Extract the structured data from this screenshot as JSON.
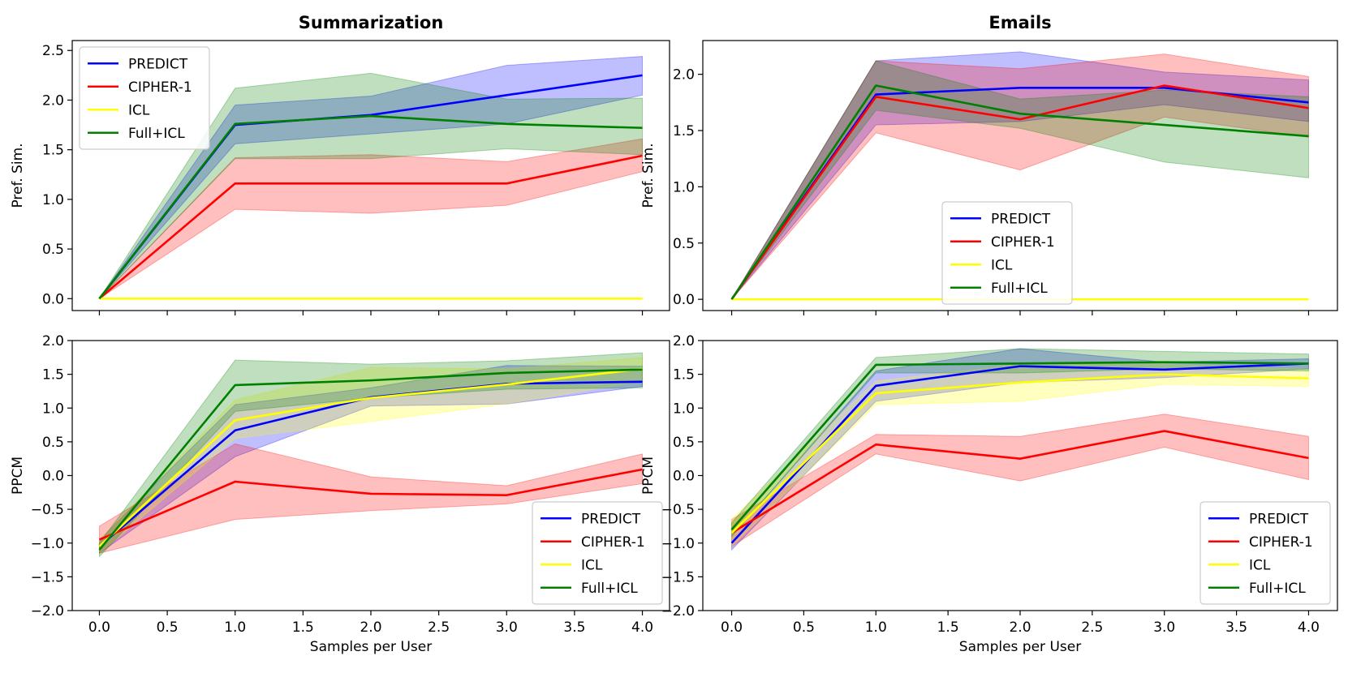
{
  "chart_data": [
    {
      "type": "line",
      "id": "sum-pref",
      "title": "Summarization",
      "xlabel": "",
      "ylabel": "Pref. Sim.",
      "xlim": [
        -0.2,
        4.2
      ],
      "ylim": [
        -0.12,
        2.6
      ],
      "xticks": [
        0.0,
        0.5,
        1.0,
        1.5,
        2.0,
        2.5,
        3.0,
        3.5,
        4.0
      ],
      "xtick_labels": [],
      "yticks": [
        0.0,
        0.5,
        1.0,
        1.5,
        2.0,
        2.5
      ],
      "ytick_labels": [
        "0.0",
        "0.5",
        "1.0",
        "1.5",
        "2.0",
        "2.5"
      ],
      "legend": "upper-left",
      "x": [
        0,
        1,
        2,
        3,
        4
      ],
      "series": [
        {
          "name": "PREDICT",
          "color": "#0000ff",
          "values": [
            0.0,
            1.75,
            1.85,
            2.05,
            2.25
          ],
          "lower": [
            0.0,
            1.56,
            1.66,
            1.76,
            2.05
          ],
          "upper": [
            0.0,
            1.95,
            2.04,
            2.35,
            2.44
          ]
        },
        {
          "name": "CIPHER-1",
          "color": "#ff0000",
          "values": [
            0.0,
            1.16,
            1.16,
            1.16,
            1.44
          ],
          "lower": [
            0.0,
            0.9,
            0.86,
            0.94,
            1.28
          ],
          "upper": [
            0.0,
            1.42,
            1.45,
            1.38,
            1.61
          ]
        },
        {
          "name": "ICL",
          "color": "#ffff00",
          "values": [
            0.0,
            0.0,
            0.0,
            0.0,
            0.0
          ],
          "lower": [
            0.0,
            0.0,
            0.0,
            0.0,
            0.0
          ],
          "upper": [
            0.0,
            0.0,
            0.0,
            0.0,
            0.0
          ]
        },
        {
          "name": "Full+ICL",
          "color": "#008000",
          "values": [
            0.0,
            1.76,
            1.84,
            1.76,
            1.72
          ],
          "lower": [
            0.0,
            1.41,
            1.41,
            1.51,
            1.45
          ],
          "upper": [
            0.0,
            2.12,
            2.27,
            2.01,
            2.02
          ]
        }
      ]
    },
    {
      "type": "line",
      "id": "email-pref",
      "title": "Emails",
      "xlabel": "",
      "ylabel": "Pref. Sim.",
      "xlim": [
        -0.2,
        4.2
      ],
      "ylim": [
        -0.1,
        2.3
      ],
      "xticks": [
        0.0,
        0.5,
        1.0,
        1.5,
        2.0,
        2.5,
        3.0,
        3.5,
        4.0
      ],
      "xtick_labels": [],
      "yticks": [
        0.0,
        0.5,
        1.0,
        1.5,
        2.0
      ],
      "ytick_labels": [
        "0.0",
        "0.5",
        "1.0",
        "1.5",
        "2.0"
      ],
      "legend": "lower-center",
      "x": [
        0,
        1,
        2,
        3,
        4
      ],
      "series": [
        {
          "name": "PREDICT",
          "color": "#0000ff",
          "values": [
            0.0,
            1.82,
            1.88,
            1.88,
            1.75
          ],
          "lower": [
            0.0,
            1.55,
            1.58,
            1.73,
            1.58
          ],
          "upper": [
            0.0,
            2.12,
            2.2,
            2.02,
            1.95
          ]
        },
        {
          "name": "CIPHER-1",
          "color": "#ff0000",
          "values": [
            0.0,
            1.8,
            1.6,
            1.9,
            1.7
          ],
          "lower": [
            0.0,
            1.48,
            1.15,
            1.62,
            1.44
          ],
          "upper": [
            0.0,
            2.12,
            2.05,
            2.18,
            1.98
          ]
        },
        {
          "name": "ICL",
          "color": "#ffff00",
          "values": [
            0.0,
            0.0,
            0.0,
            0.0,
            0.0
          ],
          "lower": [
            0.0,
            0.0,
            0.0,
            0.0,
            0.0
          ],
          "upper": [
            0.0,
            0.0,
            0.0,
            0.0,
            0.0
          ]
        },
        {
          "name": "Full+ICL",
          "color": "#008000",
          "values": [
            0.0,
            1.9,
            1.65,
            1.55,
            1.45
          ],
          "lower": [
            0.0,
            1.68,
            1.52,
            1.22,
            1.08
          ],
          "upper": [
            0.0,
            2.12,
            1.78,
            1.86,
            1.8
          ]
        }
      ]
    },
    {
      "type": "line",
      "id": "sum-ppcm",
      "title": "",
      "xlabel": "Samples per User",
      "ylabel": "PPCM",
      "xlim": [
        -0.2,
        4.2
      ],
      "ylim": [
        -2.0,
        2.0
      ],
      "xticks": [
        0.0,
        0.5,
        1.0,
        1.5,
        2.0,
        2.5,
        3.0,
        3.5,
        4.0
      ],
      "xtick_labels": [
        "0.0",
        "0.5",
        "1.0",
        "1.5",
        "2.0",
        "2.5",
        "3.0",
        "3.5",
        "4.0"
      ],
      "yticks": [
        -2.0,
        -1.5,
        -1.0,
        -0.5,
        0.0,
        0.5,
        1.0,
        1.5,
        2.0
      ],
      "ytick_labels": [
        "−2.0",
        "−1.5",
        "−1.0",
        "−0.5",
        "0.0",
        "0.5",
        "1.0",
        "1.5",
        "2.0"
      ],
      "legend": "lower-right",
      "x": [
        0,
        1,
        2,
        3,
        4
      ],
      "series": [
        {
          "name": "PREDICT",
          "color": "#0000ff",
          "values": [
            -1.05,
            0.67,
            1.16,
            1.36,
            1.39
          ],
          "lower": [
            -1.15,
            0.28,
            1.03,
            1.06,
            1.32
          ],
          "upper": [
            -0.95,
            1.05,
            1.3,
            1.63,
            1.62
          ]
        },
        {
          "name": "CIPHER-1",
          "color": "#ff0000",
          "values": [
            -0.95,
            -0.09,
            -0.27,
            -0.29,
            0.09
          ],
          "lower": [
            -1.15,
            -0.65,
            -0.52,
            -0.42,
            -0.12
          ],
          "upper": [
            -0.75,
            0.47,
            -0.02,
            -0.15,
            0.32
          ]
        },
        {
          "name": "ICL",
          "color": "#ffff00",
          "values": [
            -1.05,
            0.82,
            1.15,
            1.35,
            1.58
          ],
          "lower": [
            -1.15,
            0.55,
            0.8,
            1.06,
            1.4
          ],
          "upper": [
            -0.95,
            1.12,
            1.6,
            1.58,
            1.75
          ]
        },
        {
          "name": "Full+ICL",
          "color": "#008000",
          "values": [
            -1.1,
            1.34,
            1.41,
            1.52,
            1.57
          ],
          "lower": [
            -1.2,
            0.95,
            1.15,
            1.28,
            1.3
          ],
          "upper": [
            -1.0,
            1.71,
            1.65,
            1.7,
            1.82
          ]
        }
      ]
    },
    {
      "type": "line",
      "id": "email-ppcm",
      "title": "",
      "xlabel": "Samples per User",
      "ylabel": "PPCM",
      "xlim": [
        -0.2,
        4.2
      ],
      "ylim": [
        -2.0,
        2.0
      ],
      "xticks": [
        0.0,
        0.5,
        1.0,
        1.5,
        2.0,
        2.5,
        3.0,
        3.5,
        4.0
      ],
      "xtick_labels": [
        "0.0",
        "0.5",
        "1.0",
        "1.5",
        "2.0",
        "2.5",
        "3.0",
        "3.5",
        "4.0"
      ],
      "yticks": [
        -2.0,
        -1.5,
        -1.0,
        -0.5,
        0.0,
        0.5,
        1.0,
        1.5,
        2.0
      ],
      "ytick_labels": [
        "−2.0",
        "−1.5",
        "−1.0",
        "−0.5",
        "0.0",
        "0.5",
        "1.0",
        "1.5",
        "2.0"
      ],
      "legend": "lower-right",
      "x": [
        0,
        1,
        2,
        3,
        4
      ],
      "series": [
        {
          "name": "PREDICT",
          "color": "#0000ff",
          "values": [
            -1.0,
            1.33,
            1.62,
            1.57,
            1.66
          ],
          "lower": [
            -1.1,
            1.1,
            1.38,
            1.45,
            1.58
          ],
          "upper": [
            -0.9,
            1.55,
            1.88,
            1.68,
            1.73
          ]
        },
        {
          "name": "CIPHER-1",
          "color": "#ff0000",
          "values": [
            -0.85,
            0.46,
            0.25,
            0.66,
            0.26
          ],
          "lower": [
            -1.05,
            0.32,
            -0.08,
            0.42,
            -0.06
          ],
          "upper": [
            -0.65,
            0.61,
            0.58,
            0.91,
            0.58
          ]
        },
        {
          "name": "ICL",
          "color": "#ffff00",
          "values": [
            -0.85,
            1.22,
            1.38,
            1.5,
            1.44
          ],
          "lower": [
            -1.05,
            1.05,
            1.1,
            1.35,
            1.32
          ],
          "upper": [
            -0.65,
            1.4,
            1.65,
            1.65,
            1.57
          ]
        },
        {
          "name": "Full+ICL",
          "color": "#008000",
          "values": [
            -0.8,
            1.64,
            1.66,
            1.68,
            1.66
          ],
          "lower": [
            -0.9,
            1.52,
            1.52,
            1.58,
            1.55
          ],
          "upper": [
            -0.7,
            1.75,
            1.88,
            1.84,
            1.8
          ]
        }
      ]
    }
  ]
}
